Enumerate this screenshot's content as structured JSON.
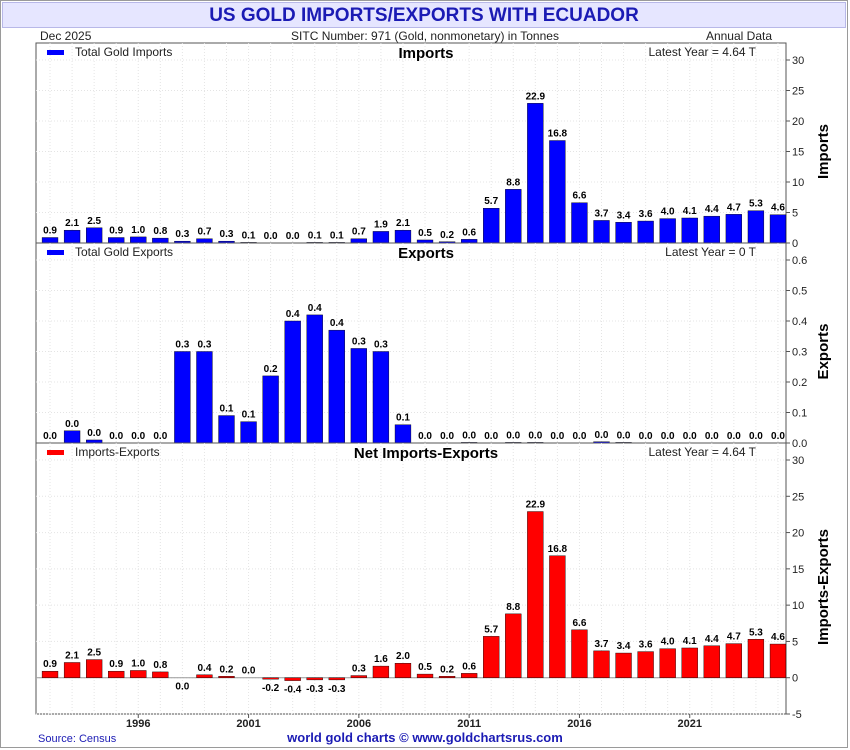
{
  "header": {
    "title": "US GOLD IMPORTS/EXPORTS WITH ECUADOR",
    "date": "Dec  2025",
    "sitc": "SITC Number: 971 (Gold, nonmonetary) in Tonnes",
    "frequency": "Annual Data"
  },
  "footer": {
    "source": "Source: Census",
    "credit": "world gold charts © www.goldchartsrus.com"
  },
  "colors": {
    "imports": "#0000ff",
    "exports": "#0000ff",
    "net": "#ff0000"
  },
  "chart_data": [
    {
      "type": "bar",
      "title": "Imports",
      "ylabel": "Imports",
      "legend": "Total Gold Imports",
      "latest": "Latest Year = 4.64 T",
      "ylim": [
        0,
        30
      ],
      "ticks": [
        "0",
        "5",
        "10",
        "15",
        "20",
        "25",
        "30"
      ],
      "x": [
        1992,
        1993,
        1994,
        1995,
        1996,
        1997,
        1998,
        1999,
        2000,
        2001,
        2002,
        2003,
        2004,
        2005,
        2006,
        2007,
        2008,
        2009,
        2010,
        2011,
        2012,
        2013,
        2014,
        2015,
        2016,
        2017,
        2018,
        2019,
        2020,
        2021,
        2022,
        2023,
        2024,
        2025
      ],
      "x_tick_labels": [
        "1996",
        "2001",
        "2006",
        "2011",
        "2016",
        "2021"
      ],
      "values": [
        0.9,
        2.1,
        2.5,
        0.9,
        1.0,
        0.8,
        0.3,
        0.7,
        0.3,
        0.1,
        0.0,
        0.0,
        0.1,
        0.1,
        0.7,
        1.9,
        2.1,
        0.5,
        0.2,
        0.6,
        5.7,
        8.8,
        22.9,
        16.8,
        6.6,
        3.7,
        3.4,
        3.6,
        4.0,
        4.1,
        4.4,
        4.7,
        5.3,
        4.64
      ],
      "labels": [
        "0.9",
        "2.1",
        "2.5",
        "0.9",
        "1.0",
        "0.8",
        "0.3",
        "0.7",
        "0.3",
        "0.1",
        "0.0",
        "0.0",
        "0.1",
        "0.1",
        "0.7",
        "1.9",
        "2.1",
        "0.5",
        "0.2",
        "0.6",
        "5.7",
        "8.8",
        "22.9",
        "16.8",
        "6.6",
        "3.7",
        "3.4",
        "3.6",
        "4.0",
        "4.1",
        "4.4",
        "4.7",
        "5.3",
        "4.6"
      ]
    },
    {
      "type": "bar",
      "title": "Exports",
      "ylabel": "Exports",
      "legend": "Total Gold Exports",
      "latest": "Latest Year = 0 T",
      "ylim": [
        0,
        0.6
      ],
      "ticks": [
        "0.0",
        "0.1",
        "0.2",
        "0.3",
        "0.4",
        "0.5",
        "0.6"
      ],
      "x": [
        1992,
        1993,
        1994,
        1995,
        1996,
        1997,
        1998,
        1999,
        2000,
        2001,
        2002,
        2003,
        2004,
        2005,
        2006,
        2007,
        2008,
        2009,
        2010,
        2011,
        2012,
        2013,
        2014,
        2015,
        2016,
        2017,
        2018,
        2019,
        2020,
        2021,
        2022,
        2023,
        2024,
        2025
      ],
      "values": [
        0.0,
        0.04,
        0.01,
        0.0,
        0.0,
        0.0,
        0.3,
        0.3,
        0.09,
        0.07,
        0.22,
        0.4,
        0.42,
        0.37,
        0.31,
        0.3,
        0.06,
        0.0,
        0.0,
        0.002,
        0.0,
        0.002,
        0.002,
        0.0,
        0.0,
        0.004,
        0.002,
        0.0,
        0.0,
        0.0,
        0.0,
        0.0,
        0.0,
        0.0
      ],
      "labels": [
        "0.0",
        "0.0",
        "0.0",
        "0.0",
        "0.0",
        "0.0",
        "0.3",
        "0.3",
        "0.1",
        "0.1",
        "0.2",
        "0.4",
        "0.4",
        "0.4",
        "0.3",
        "0.3",
        "0.1",
        "0.0",
        "0.0",
        "0.0",
        "0.0",
        "0.0",
        "0.0",
        "0.0",
        "0.0",
        "0.0",
        "0.0",
        "0.0",
        "0.0",
        "0.0",
        "0.0",
        "0.0",
        "0.0",
        "0.0"
      ]
    },
    {
      "type": "bar",
      "title": "Net Imports-Exports",
      "ylabel": "Imports-Exports",
      "legend": "Imports-Exports",
      "latest": "Latest Year = 4.64 T",
      "ylim": [
        -5,
        30
      ],
      "ticks": [
        "-5",
        "0",
        "5",
        "10",
        "15",
        "20",
        "25",
        "30"
      ],
      "x": [
        1992,
        1993,
        1994,
        1995,
        1996,
        1997,
        1998,
        1999,
        2000,
        2001,
        2002,
        2003,
        2004,
        2005,
        2006,
        2007,
        2008,
        2009,
        2010,
        2011,
        2012,
        2013,
        2014,
        2015,
        2016,
        2017,
        2018,
        2019,
        2020,
        2021,
        2022,
        2023,
        2024,
        2025
      ],
      "values": [
        0.9,
        2.1,
        2.5,
        0.9,
        1.0,
        0.8,
        0.0,
        0.4,
        0.2,
        0.0,
        -0.2,
        -0.4,
        -0.3,
        -0.3,
        0.3,
        1.6,
        2.0,
        0.5,
        0.2,
        0.6,
        5.7,
        8.8,
        22.9,
        16.8,
        6.6,
        3.7,
        3.4,
        3.6,
        4.0,
        4.1,
        4.4,
        4.7,
        5.3,
        4.64
      ],
      "labels": [
        "0.9",
        "2.1",
        "2.5",
        "0.9",
        "1.0",
        "0.8",
        "0.0",
        "0.4",
        "0.2",
        "0.0",
        "-0.2",
        "-0.4",
        "-0.3",
        "-0.3",
        "0.3",
        "1.6",
        "2.0",
        "0.5",
        "0.2",
        "0.6",
        "5.7",
        "8.8",
        "22.9",
        "16.8",
        "6.6",
        "3.7",
        "3.4",
        "3.6",
        "4.0",
        "4.1",
        "4.4",
        "4.7",
        "5.3",
        "4.6"
      ]
    }
  ]
}
